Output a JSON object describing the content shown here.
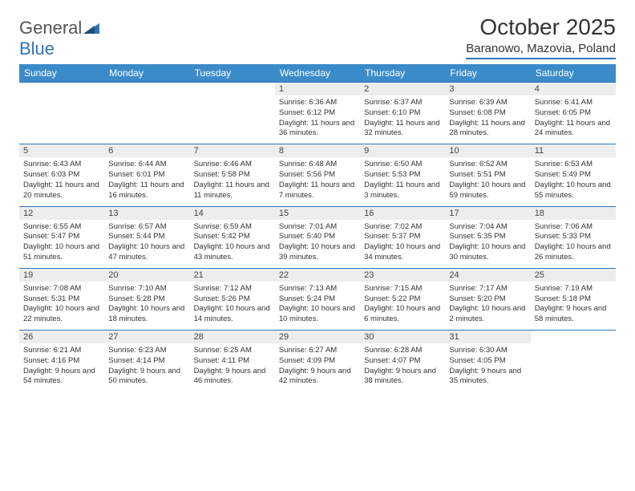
{
  "logo": {
    "text_general": "General",
    "text_blue": "Blue"
  },
  "title": "October 2025",
  "location": "Baranowo, Mazovia, Poland",
  "colors": {
    "header_bg": "#3b8bc9",
    "accent": "#2e75b6",
    "daynum_bg": "#ededed",
    "text": "#333333",
    "logo_gray": "#555555"
  },
  "typography": {
    "title_fontsize": 28,
    "location_fontsize": 15,
    "dayhead_fontsize": 12,
    "daynum_fontsize": 11,
    "info_fontsize": 9.5
  },
  "day_names": [
    "Sunday",
    "Monday",
    "Tuesday",
    "Wednesday",
    "Thursday",
    "Friday",
    "Saturday"
  ],
  "weeks": [
    [
      null,
      null,
      null,
      {
        "n": "1",
        "sr": "Sunrise: 6:36 AM",
        "ss": "Sunset: 6:12 PM",
        "dl": "Daylight: 11 hours and 36 minutes."
      },
      {
        "n": "2",
        "sr": "Sunrise: 6:37 AM",
        "ss": "Sunset: 6:10 PM",
        "dl": "Daylight: 11 hours and 32 minutes."
      },
      {
        "n": "3",
        "sr": "Sunrise: 6:39 AM",
        "ss": "Sunset: 6:08 PM",
        "dl": "Daylight: 11 hours and 28 minutes."
      },
      {
        "n": "4",
        "sr": "Sunrise: 6:41 AM",
        "ss": "Sunset: 6:05 PM",
        "dl": "Daylight: 11 hours and 24 minutes."
      }
    ],
    [
      {
        "n": "5",
        "sr": "Sunrise: 6:43 AM",
        "ss": "Sunset: 6:03 PM",
        "dl": "Daylight: 11 hours and 20 minutes."
      },
      {
        "n": "6",
        "sr": "Sunrise: 6:44 AM",
        "ss": "Sunset: 6:01 PM",
        "dl": "Daylight: 11 hours and 16 minutes."
      },
      {
        "n": "7",
        "sr": "Sunrise: 6:46 AM",
        "ss": "Sunset: 5:58 PM",
        "dl": "Daylight: 11 hours and 11 minutes."
      },
      {
        "n": "8",
        "sr": "Sunrise: 6:48 AM",
        "ss": "Sunset: 5:56 PM",
        "dl": "Daylight: 11 hours and 7 minutes."
      },
      {
        "n": "9",
        "sr": "Sunrise: 6:50 AM",
        "ss": "Sunset: 5:53 PM",
        "dl": "Daylight: 11 hours and 3 minutes."
      },
      {
        "n": "10",
        "sr": "Sunrise: 6:52 AM",
        "ss": "Sunset: 5:51 PM",
        "dl": "Daylight: 10 hours and 59 minutes."
      },
      {
        "n": "11",
        "sr": "Sunrise: 6:53 AM",
        "ss": "Sunset: 5:49 PM",
        "dl": "Daylight: 10 hours and 55 minutes."
      }
    ],
    [
      {
        "n": "12",
        "sr": "Sunrise: 6:55 AM",
        "ss": "Sunset: 5:47 PM",
        "dl": "Daylight: 10 hours and 51 minutes."
      },
      {
        "n": "13",
        "sr": "Sunrise: 6:57 AM",
        "ss": "Sunset: 5:44 PM",
        "dl": "Daylight: 10 hours and 47 minutes."
      },
      {
        "n": "14",
        "sr": "Sunrise: 6:59 AM",
        "ss": "Sunset: 5:42 PM",
        "dl": "Daylight: 10 hours and 43 minutes."
      },
      {
        "n": "15",
        "sr": "Sunrise: 7:01 AM",
        "ss": "Sunset: 5:40 PM",
        "dl": "Daylight: 10 hours and 39 minutes."
      },
      {
        "n": "16",
        "sr": "Sunrise: 7:02 AM",
        "ss": "Sunset: 5:37 PM",
        "dl": "Daylight: 10 hours and 34 minutes."
      },
      {
        "n": "17",
        "sr": "Sunrise: 7:04 AM",
        "ss": "Sunset: 5:35 PM",
        "dl": "Daylight: 10 hours and 30 minutes."
      },
      {
        "n": "18",
        "sr": "Sunrise: 7:06 AM",
        "ss": "Sunset: 5:33 PM",
        "dl": "Daylight: 10 hours and 26 minutes."
      }
    ],
    [
      {
        "n": "19",
        "sr": "Sunrise: 7:08 AM",
        "ss": "Sunset: 5:31 PM",
        "dl": "Daylight: 10 hours and 22 minutes."
      },
      {
        "n": "20",
        "sr": "Sunrise: 7:10 AM",
        "ss": "Sunset: 5:28 PM",
        "dl": "Daylight: 10 hours and 18 minutes."
      },
      {
        "n": "21",
        "sr": "Sunrise: 7:12 AM",
        "ss": "Sunset: 5:26 PM",
        "dl": "Daylight: 10 hours and 14 minutes."
      },
      {
        "n": "22",
        "sr": "Sunrise: 7:13 AM",
        "ss": "Sunset: 5:24 PM",
        "dl": "Daylight: 10 hours and 10 minutes."
      },
      {
        "n": "23",
        "sr": "Sunrise: 7:15 AM",
        "ss": "Sunset: 5:22 PM",
        "dl": "Daylight: 10 hours and 6 minutes."
      },
      {
        "n": "24",
        "sr": "Sunrise: 7:17 AM",
        "ss": "Sunset: 5:20 PM",
        "dl": "Daylight: 10 hours and 2 minutes."
      },
      {
        "n": "25",
        "sr": "Sunrise: 7:19 AM",
        "ss": "Sunset: 5:18 PM",
        "dl": "Daylight: 9 hours and 58 minutes."
      }
    ],
    [
      {
        "n": "26",
        "sr": "Sunrise: 6:21 AM",
        "ss": "Sunset: 4:16 PM",
        "dl": "Daylight: 9 hours and 54 minutes."
      },
      {
        "n": "27",
        "sr": "Sunrise: 6:23 AM",
        "ss": "Sunset: 4:14 PM",
        "dl": "Daylight: 9 hours and 50 minutes."
      },
      {
        "n": "28",
        "sr": "Sunrise: 6:25 AM",
        "ss": "Sunset: 4:11 PM",
        "dl": "Daylight: 9 hours and 46 minutes."
      },
      {
        "n": "29",
        "sr": "Sunrise: 6:27 AM",
        "ss": "Sunset: 4:09 PM",
        "dl": "Daylight: 9 hours and 42 minutes."
      },
      {
        "n": "30",
        "sr": "Sunrise: 6:28 AM",
        "ss": "Sunset: 4:07 PM",
        "dl": "Daylight: 9 hours and 38 minutes."
      },
      {
        "n": "31",
        "sr": "Sunrise: 6:30 AM",
        "ss": "Sunset: 4:05 PM",
        "dl": "Daylight: 9 hours and 35 minutes."
      },
      null
    ]
  ]
}
